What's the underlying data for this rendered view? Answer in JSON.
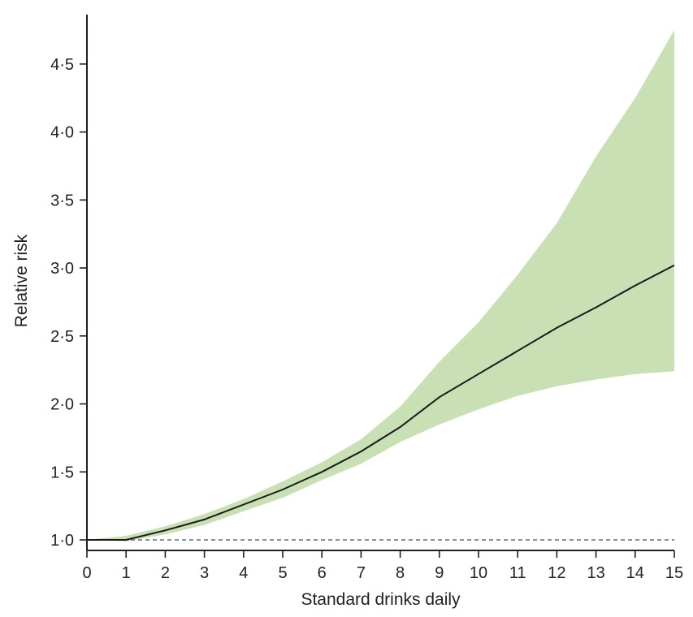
{
  "chart_data": {
    "type": "line",
    "title": "",
    "xlabel": "Standard drinks daily",
    "ylabel": "Relative risk",
    "xlim": [
      0,
      15
    ],
    "ylim": [
      1.0,
      4.75
    ],
    "x_ticks": [
      0,
      1,
      2,
      3,
      4,
      5,
      6,
      7,
      8,
      9,
      10,
      11,
      12,
      13,
      14,
      15
    ],
    "x_tick_labels": [
      "0",
      "1",
      "2",
      "3",
      "4",
      "5",
      "6",
      "7",
      "8",
      "9",
      "10",
      "11",
      "12",
      "13",
      "14",
      "15"
    ],
    "y_ticks": [
      1.0,
      1.5,
      2.0,
      2.5,
      3.0,
      3.5,
      4.0,
      4.5
    ],
    "y_tick_labels": [
      "1·0",
      "1·5",
      "2·0",
      "2·5",
      "3·0",
      "3·5",
      "4·0",
      "4·5"
    ],
    "grid": false,
    "reference_line": {
      "y": 1.0,
      "style": "dashed",
      "color": "#5a6e80"
    },
    "colors": {
      "line": "#1a1a1a",
      "band": "#c8e0b4",
      "axis": "#231f20"
    },
    "series": [
      {
        "x": [
          0,
          1,
          2,
          3,
          4,
          5,
          6,
          7,
          8,
          9,
          10,
          11,
          12,
          13,
          14,
          15
        ],
        "values": [
          1.0,
          1.0,
          1.07,
          1.15,
          1.26,
          1.37,
          1.5,
          1.65,
          1.83,
          2.05,
          2.22,
          2.39,
          2.56,
          2.71,
          2.87,
          3.02
        ],
        "lower": [
          1.0,
          0.99,
          1.04,
          1.11,
          1.21,
          1.31,
          1.44,
          1.56,
          1.72,
          1.85,
          1.96,
          2.06,
          2.13,
          2.18,
          2.22,
          2.24
        ],
        "upper": [
          1.0,
          1.03,
          1.1,
          1.19,
          1.3,
          1.43,
          1.57,
          1.74,
          1.98,
          2.31,
          2.6,
          2.95,
          3.33,
          3.82,
          4.25,
          4.75
        ]
      }
    ]
  }
}
